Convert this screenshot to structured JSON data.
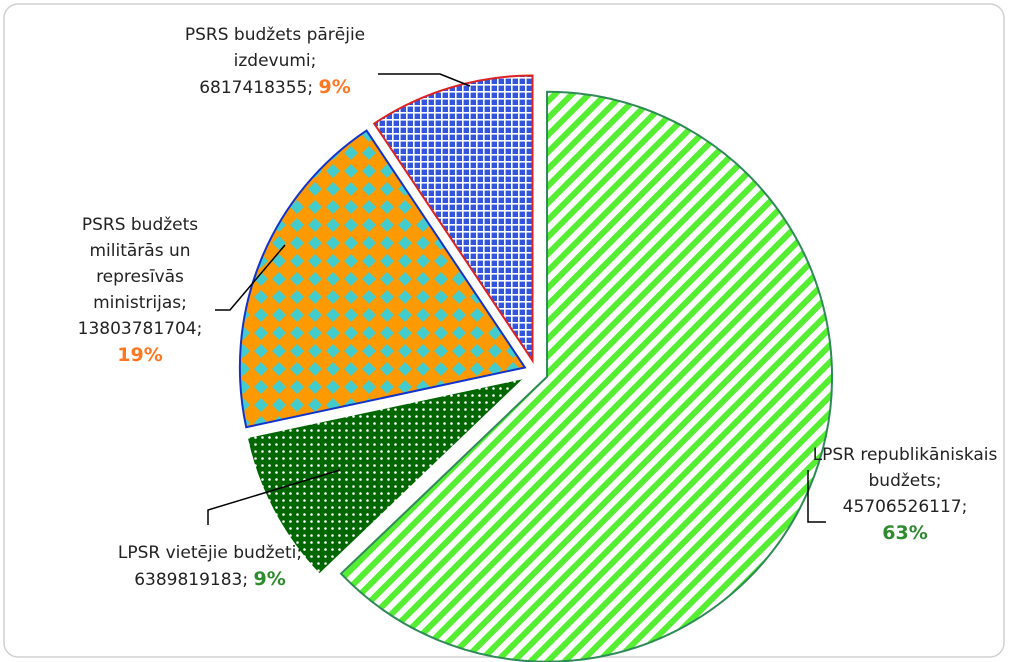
{
  "chart_data": {
    "type": "pie",
    "categories": [
      "LPSR republikāniskais budžets",
      "LPSR vietējie budžeti",
      "PSRS budžets militārās un represīvās ministrijas",
      "PSRS budžets pārējie izdevumi"
    ],
    "values": [
      45706526117,
      6389819183,
      13803781704,
      6817418355
    ],
    "percent_labels": [
      "63%",
      "9%",
      "19%",
      "9%"
    ],
    "colors": [
      "#55ee33",
      "#006600",
      "#ff9900",
      "#3355dd"
    ]
  }
}
